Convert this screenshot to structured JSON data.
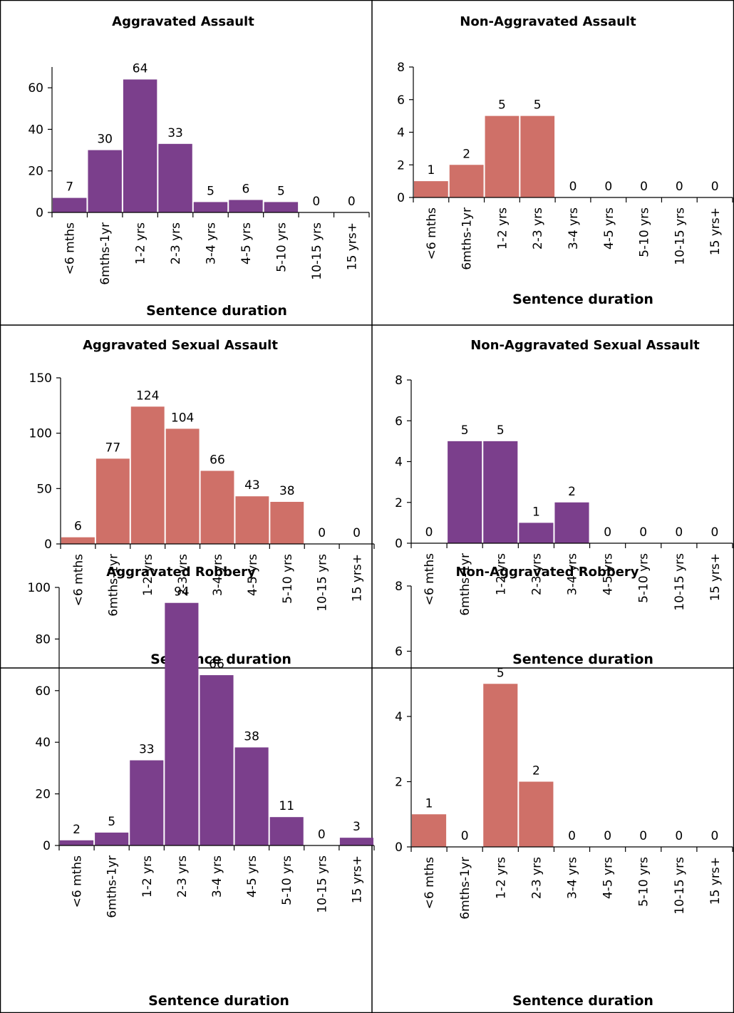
{
  "chart_data": [
    {
      "type": "bar",
      "title": "Aggravated Assault",
      "xlabel": "Sentence duration",
      "ylabel": "",
      "categories": [
        "<6 mths",
        "6mths-1yr",
        "1-2 yrs",
        "2-3 yrs",
        "3-4 yrs",
        "4-5 yrs",
        "5-10 yrs",
        "10-15 yrs",
        "15 yrs+"
      ],
      "values": [
        7,
        30,
        64,
        33,
        5,
        6,
        5,
        0,
        0
      ],
      "ylim": [
        0,
        70
      ],
      "yticks": [
        0,
        20,
        40,
        60
      ],
      "color": "#7b3f8c",
      "grid": false,
      "legend": "none"
    },
    {
      "type": "bar",
      "title": "Non-Aggravated Assault",
      "xlabel": "Sentence duration",
      "ylabel": "",
      "categories": [
        "<6 mths",
        "6mths-1yr",
        "1-2 yrs",
        "2-3 yrs",
        "3-4 yrs",
        "4-5 yrs",
        "5-10 yrs",
        "10-15 yrs",
        "15 yrs+"
      ],
      "values": [
        1,
        2,
        5,
        5,
        0,
        0,
        0,
        0,
        0
      ],
      "ylim": [
        0,
        8
      ],
      "yticks": [
        0,
        2,
        4,
        6,
        8
      ],
      "color": "#cf7068",
      "grid": false,
      "legend": "none"
    },
    {
      "type": "bar",
      "title": "Aggravated Sexual Assault",
      "xlabel": "Sentence duration",
      "ylabel": "",
      "categories": [
        "<6 mths",
        "6mths-1yr",
        "1-2 yrs",
        "2-3 yrs",
        "3-4 yrs",
        "4-5 yrs",
        "5-10 yrs",
        "10-15 yrs",
        "15 yrs+"
      ],
      "values": [
        6,
        77,
        124,
        104,
        66,
        43,
        38,
        0,
        0
      ],
      "ylim": [
        0,
        150
      ],
      "yticks": [
        0,
        50,
        100,
        150
      ],
      "color": "#cf7068",
      "grid": false,
      "legend": "none"
    },
    {
      "type": "bar",
      "title": "Non-Aggravated Sexual Assault",
      "xlabel": "Sentence duration",
      "ylabel": "",
      "categories": [
        "<6 mths",
        "6mths-1yr",
        "1-2 yrs",
        "2-3 yrs",
        "3-4 yrs",
        "4-5 yrs",
        "5-10 yrs",
        "10-15 yrs",
        "15 yrs+"
      ],
      "values": [
        0,
        5,
        5,
        1,
        2,
        0,
        0,
        0,
        0
      ],
      "ylim": [
        0,
        8
      ],
      "yticks": [
        0,
        2,
        4,
        6,
        8
      ],
      "color": "#7b3f8c",
      "grid": false,
      "legend": "none"
    },
    {
      "type": "bar",
      "title": "Aggravated Robbery",
      "xlabel": "Sentence duration",
      "ylabel": "",
      "categories": [
        "<6 mths",
        "6mths-1yr",
        "1-2 yrs",
        "2-3 yrs",
        "3-4 yrs",
        "4-5 yrs",
        "5-10 yrs",
        "10-15 yrs",
        "15 yrs+"
      ],
      "values": [
        2,
        5,
        33,
        94,
        66,
        38,
        11,
        0,
        3
      ],
      "ylim": [
        0,
        100
      ],
      "yticks": [
        0,
        20,
        40,
        60,
        80,
        100
      ],
      "color": "#7b3f8c",
      "grid": false,
      "legend": "none"
    },
    {
      "type": "bar",
      "title": "Non-Aggravated Robbery",
      "xlabel": "Sentence duration",
      "ylabel": "",
      "categories": [
        "<6 mths",
        "6mths-1yr",
        "1-2 yrs",
        "2-3 yrs",
        "3-4 yrs",
        "4-5 yrs",
        "5-10 yrs",
        "10-15 yrs",
        "15 yrs+"
      ],
      "values": [
        1,
        0,
        5,
        2,
        0,
        0,
        0,
        0,
        0
      ],
      "ylim": [
        0,
        8
      ],
      "yticks": [
        0,
        2,
        4,
        6,
        8
      ],
      "color": "#cf7068",
      "grid": false,
      "legend": "none"
    }
  ]
}
